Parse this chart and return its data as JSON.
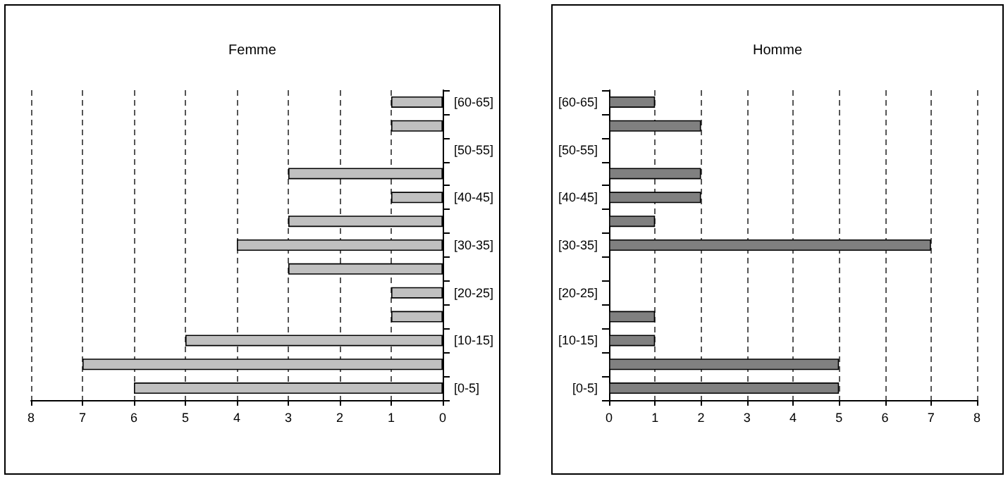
{
  "chart_data": [
    {
      "type": "bar",
      "title": "Femme",
      "orientation": "horizontal",
      "categories": [
        "[60-65]",
        null,
        "[50-55]",
        null,
        "[40-45]",
        null,
        "[30-35]",
        null,
        "[20-25]",
        null,
        "[10-15]",
        null,
        "[0-5]"
      ],
      "values": [
        1,
        1,
        null,
        3,
        1,
        3,
        4,
        3,
        1,
        1,
        5,
        7,
        6
      ],
      "color": "#c0c0c0",
      "xlim": [
        8,
        0
      ],
      "xticks": [
        8,
        7,
        6,
        5,
        4,
        3,
        2,
        1,
        0
      ],
      "grid": "x"
    },
    {
      "type": "bar",
      "title": "Homme",
      "orientation": "horizontal",
      "categories": [
        "[60-65]",
        null,
        "[50-55]",
        null,
        "[40-45]",
        null,
        "[30-35]",
        null,
        "[20-25]",
        null,
        "[10-15]",
        null,
        "[0-5]"
      ],
      "values": [
        1,
        2,
        null,
        2,
        2,
        1,
        7,
        null,
        null,
        1,
        1,
        5,
        5
      ],
      "color": "#808080",
      "xlim": [
        0,
        8
      ],
      "xticks": [
        0,
        1,
        2,
        3,
        4,
        5,
        6,
        7,
        8
      ],
      "grid": "x"
    }
  ]
}
